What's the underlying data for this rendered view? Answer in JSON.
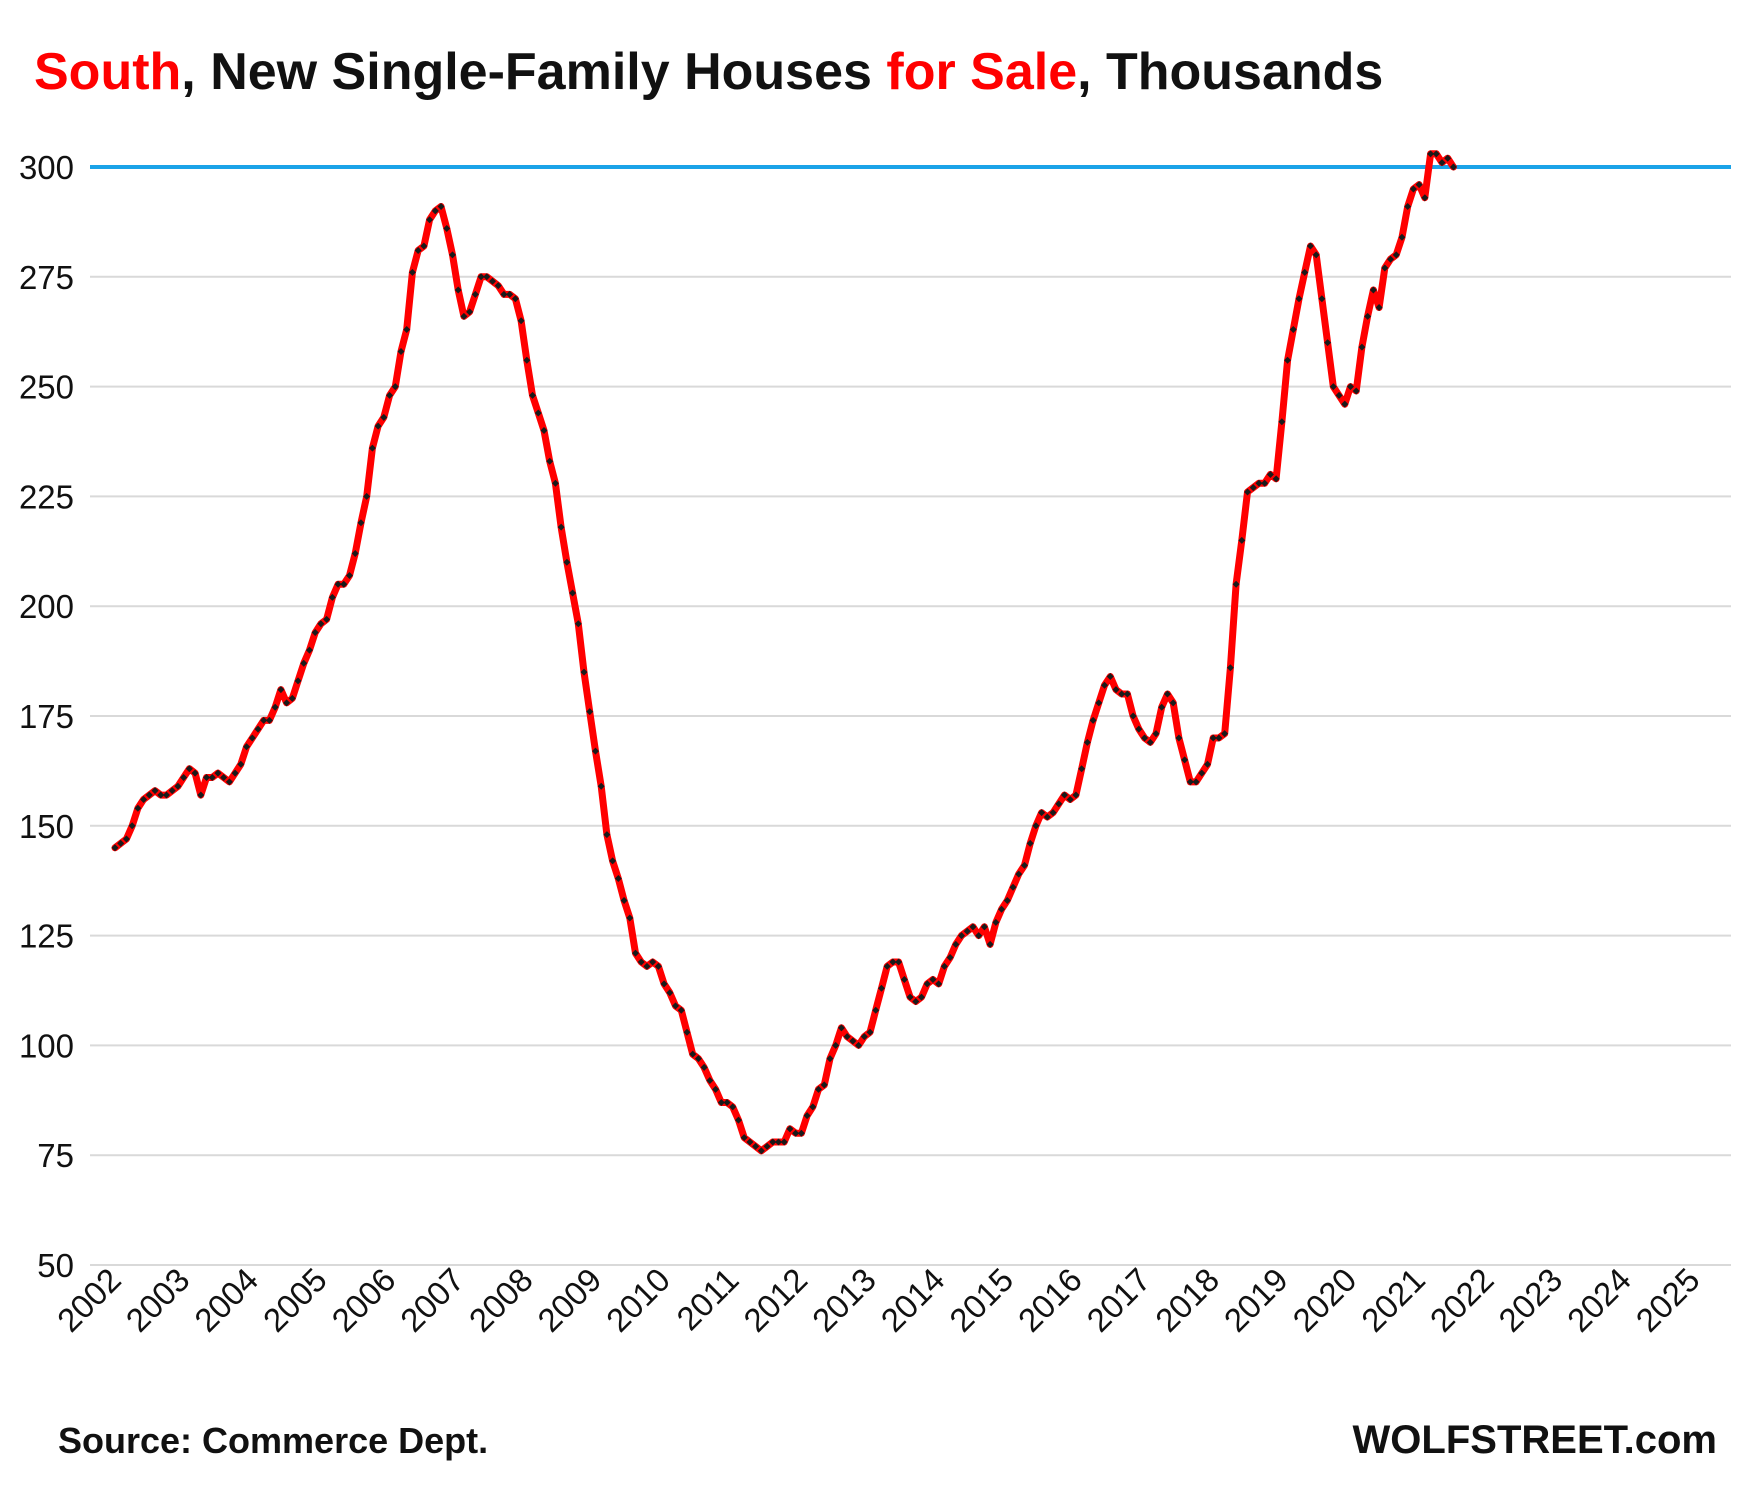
{
  "title": {
    "part1": "South",
    "part2": ", New Single-Family Houses ",
    "part3": "for Sale",
    "part4": ", Thousands"
  },
  "source": "Source: Commerce Dept.",
  "brand": "WOLFSTREET.com",
  "colors": {
    "line": "#ff0000",
    "markers": "#1a1a1a",
    "reference": "#1aa3e8",
    "grid": "#d9d9d9",
    "accent": "#ff0000"
  },
  "chart_data": {
    "type": "line",
    "title": "South, New Single-Family Houses for Sale, Thousands",
    "xlabel": "",
    "ylabel": "",
    "ylim": [
      50,
      305
    ],
    "xlim": [
      2002.0,
      2025.5
    ],
    "grid": true,
    "legend": "none",
    "yticks": [
      50,
      75,
      100,
      125,
      150,
      175,
      200,
      225,
      250,
      275,
      300
    ],
    "xticks": [
      "2002",
      "2003",
      "2004",
      "2005",
      "2006",
      "2007",
      "2008",
      "2009",
      "2010",
      "2011",
      "2012",
      "2013",
      "2014",
      "2015",
      "2016",
      "2017",
      "2018",
      "2019",
      "2020",
      "2021",
      "2022",
      "2023",
      "2024",
      "2025"
    ],
    "reference_line": {
      "y": 300
    },
    "series": [
      {
        "start": "2002-01",
        "frequency": "monthly",
        "values": [
          145,
          146,
          147,
          150,
          154,
          156,
          157,
          158,
          157,
          157,
          158,
          159,
          161,
          163,
          162,
          157,
          161,
          161,
          162,
          161,
          160,
          162,
          164,
          168,
          170,
          172,
          174,
          174,
          177,
          181,
          178,
          179,
          183,
          187,
          190,
          194,
          196,
          197,
          202,
          205,
          205,
          207,
          212,
          219,
          225,
          236,
          241,
          243,
          248,
          250,
          258,
          263,
          276,
          281,
          282,
          288,
          290,
          291,
          286,
          280,
          272,
          266,
          267,
          271,
          275,
          275,
          274,
          273,
          271,
          271,
          270,
          265,
          256,
          248,
          244,
          240,
          233,
          228,
          218,
          210,
          203,
          196,
          185,
          176,
          167,
          159,
          148,
          142,
          138,
          133,
          129,
          121,
          119,
          118,
          119,
          118,
          114,
          112,
          109,
          108,
          103,
          98,
          97,
          95,
          92,
          90,
          87,
          87,
          86,
          83,
          79,
          78,
          77,
          76,
          77,
          78,
          78,
          78,
          81,
          80,
          80,
          84,
          86,
          90,
          91,
          97,
          100,
          104,
          102,
          101,
          100,
          102,
          103,
          108,
          113,
          118,
          119,
          119,
          115,
          111,
          110,
          111,
          114,
          115,
          114,
          118,
          120,
          123,
          125,
          126,
          127,
          125,
          127,
          123,
          128,
          131,
          133,
          136,
          139,
          141,
          146,
          150,
          153,
          152,
          153,
          155,
          157,
          156,
          157,
          163,
          169,
          174,
          178,
          182,
          184,
          181,
          180,
          180,
          175,
          172,
          170,
          169,
          171,
          177,
          180,
          178,
          170,
          165,
          160,
          160,
          162,
          164,
          170,
          170,
          171,
          186,
          205,
          215,
          226,
          227,
          228,
          228,
          230,
          229,
          242,
          256,
          263,
          270,
          276,
          282,
          280,
          270,
          260,
          250,
          248,
          246,
          250,
          249,
          259,
          266,
          272,
          268,
          277,
          279,
          280,
          284,
          291,
          295,
          296,
          293,
          303,
          303,
          301,
          302,
          300
        ]
      }
    ]
  }
}
